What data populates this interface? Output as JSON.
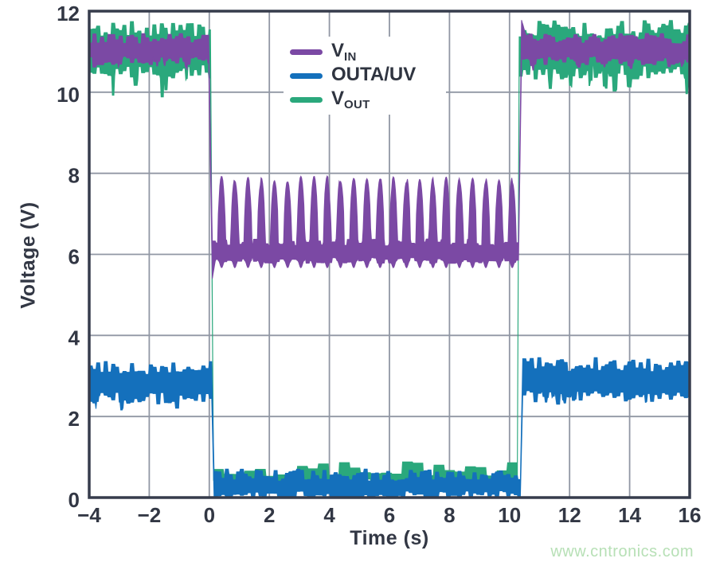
{
  "page": {
    "background": "#ffffff"
  },
  "watermark": {
    "text": "www.cntronics.com",
    "color": "#b7e0b6"
  },
  "chart_data": {
    "type": "line",
    "title": "",
    "xlabel": "Time (s)",
    "ylabel": "Voltage (V)",
    "xlim": [
      -4,
      16
    ],
    "ylim": [
      0,
      12
    ],
    "grid": true,
    "colors": {
      "frame": "#363c4c",
      "grid": "#9197a4",
      "tick_text": "#323744",
      "plot_bg": "#ffffff"
    },
    "xtick_values": [
      -4,
      -2,
      0,
      2,
      4,
      6,
      8,
      10,
      12,
      14,
      16
    ],
    "xtick_labels": [
      "−4",
      "−2",
      "0",
      "2",
      "4",
      "6",
      "8",
      "10",
      "12",
      "14",
      "16"
    ],
    "ytick_values": [
      0,
      2,
      4,
      6,
      8,
      10,
      12
    ],
    "ytick_labels": [
      "0",
      "2",
      "4",
      "6",
      "8",
      "10",
      "12"
    ],
    "legend": {
      "position": "top-center",
      "entries": [
        {
          "main": "V",
          "sub": "IN",
          "color": "#7b49a4"
        },
        {
          "main": "OUTA/UV",
          "sub": "",
          "color": "#1470bc"
        },
        {
          "main": "V",
          "sub": "OUT",
          "color": "#2aa87c"
        }
      ]
    },
    "series": [
      {
        "name": "VOUT",
        "label": "V_OUT",
        "color": "#2aa87c",
        "seed": 11,
        "description": "Output voltage: noisy band ~10.5-11.6 V before t=0 and after t=10.3 s; collapses to ~0.3-0.9 V blocky band during 0 < t < 10.3 s.",
        "segments": [
          {
            "t0": -4.0,
            "t1": 0.04,
            "lo": 10.5,
            "hi": 11.55,
            "noise": 0.22,
            "style": "ragged",
            "dip": 0.5,
            "dip_p": 0.035
          },
          {
            "t0": 0.14,
            "t1": 10.26,
            "lo": 0.3,
            "hi": 0.72,
            "noise": 0.2,
            "style": "blocky"
          },
          {
            "t0": 10.32,
            "t1": 16.0,
            "lo": 10.5,
            "hi": 11.55,
            "noise": 0.22,
            "style": "ragged",
            "dip": 0.5,
            "dip_p": 0.035
          }
        ]
      },
      {
        "name": "VIN",
        "label": "V_IN",
        "color": "#7b49a4",
        "seed": 23,
        "description": "Input voltage: ~10.8-11.3 V band, steps down at t=0 to ~5.9-6.3 V with periodic retry spikes to ~7.85 V (period 0.44 s), returns at t=10.4 s with brief overshoot to ~11.8 V.",
        "segments": [
          {
            "t0": -4.0,
            "t1": -0.02,
            "lo": 10.78,
            "hi": 11.32,
            "noise": 0.13,
            "style": "ragged",
            "dip": 0.15,
            "dip_p": 0.02
          },
          {
            "t0": 0.1,
            "t1": 10.3,
            "lo": 5.85,
            "hi": 6.3,
            "noise": 0.09,
            "style": "ragged",
            "undershoot": {
              "v": 5.4,
              "dur": 0.1
            },
            "spikes": {
              "start": 0.18,
              "period": 0.44,
              "width": 0.26,
              "peak": 7.85
            }
          },
          {
            "t0": 10.4,
            "t1": 16.0,
            "lo": 10.78,
            "hi": 11.32,
            "noise": 0.13,
            "style": "ragged",
            "dip": 0.15,
            "dip_p": 0.02,
            "overshoot": {
              "v": 11.78,
              "dur": 0.18
            }
          }
        ]
      },
      {
        "name": "OUTA_UV",
        "label": "OUTA/UV",
        "color": "#1470bc",
        "seed": 5,
        "description": "Undervoltage flag output: ~2.4-3.2 V band before/after the fault window, ~0-0.6 V band hugging 0 V during 0 < t < 10.4 s.",
        "segments": [
          {
            "t0": -4.0,
            "t1": 0.08,
            "lo": 2.45,
            "hi": 3.18,
            "noise": 0.18,
            "style": "ragged",
            "dip": 0.22,
            "dip_p": 0.03
          },
          {
            "t0": 0.16,
            "t1": 10.36,
            "lo": 0.04,
            "hi": 0.55,
            "noise": 0.16,
            "style": "ragged"
          },
          {
            "t0": 10.44,
            "t1": 16.0,
            "lo": 2.5,
            "hi": 3.28,
            "noise": 0.18,
            "style": "ragged",
            "dip": 0.22,
            "dip_p": 0.03
          }
        ]
      }
    ]
  }
}
